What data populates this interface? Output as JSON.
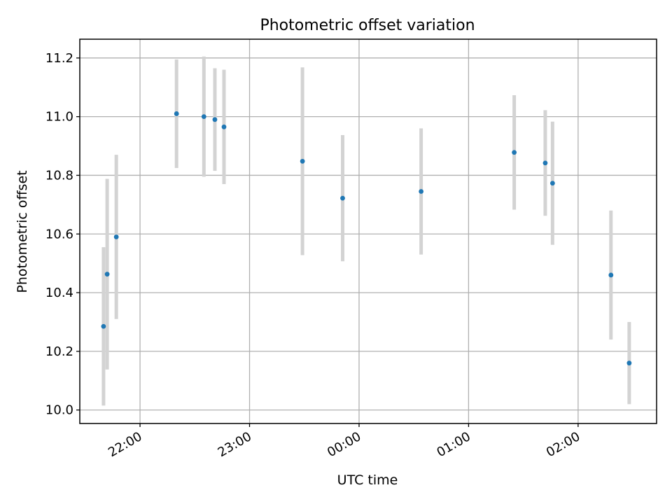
{
  "chart_data": {
    "type": "scatter",
    "title": "Photometric offset variation",
    "xlabel": "UTC time",
    "ylabel": "Photometric offset",
    "x_ticks": [
      "22:00",
      "23:00",
      "00:00",
      "01:00",
      "02:00"
    ],
    "y_ticks": [
      "10.0",
      "10.2",
      "10.4",
      "10.6",
      "10.8",
      "11.0",
      "11.2"
    ],
    "ylim": [
      9.954,
      11.264
    ],
    "xlim": [
      "21:27",
      "02:43"
    ],
    "grid": true,
    "series": [
      {
        "marker_color": "#1f77b4",
        "errorbar_color": "#d3d3d3",
        "points": [
          {
            "x": "21:40",
            "y": 10.285,
            "yerr": 0.27
          },
          {
            "x": "21:42",
            "y": 10.463,
            "yerr": 0.325
          },
          {
            "x": "21:47",
            "y": 10.59,
            "yerr": 0.28
          },
          {
            "x": "22:20",
            "y": 11.01,
            "yerr": 0.185
          },
          {
            "x": "22:35",
            "y": 11.0,
            "yerr": 0.205
          },
          {
            "x": "22:41",
            "y": 10.99,
            "yerr": 0.175
          },
          {
            "x": "22:46",
            "y": 10.965,
            "yerr": 0.195
          },
          {
            "x": "23:29",
            "y": 10.848,
            "yerr": 0.32
          },
          {
            "x": "23:51",
            "y": 10.722,
            "yerr": 0.215
          },
          {
            "x": "00:34",
            "y": 10.745,
            "yerr": 0.215
          },
          {
            "x": "01:25",
            "y": 10.878,
            "yerr": 0.195
          },
          {
            "x": "01:42",
            "y": 10.842,
            "yerr": 0.18
          },
          {
            "x": "01:46",
            "y": 10.773,
            "yerr": 0.21
          },
          {
            "x": "02:18",
            "y": 10.46,
            "yerr": 0.22
          },
          {
            "x": "02:28",
            "y": 10.16,
            "yerr": 0.14
          }
        ]
      }
    ]
  }
}
